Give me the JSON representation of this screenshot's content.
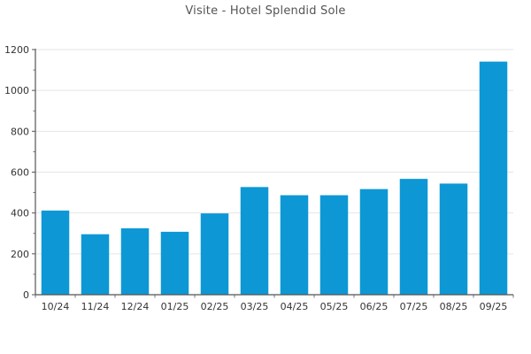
{
  "title": "Visite - Hotel Splendid Sole",
  "colors": {
    "bar": "#0d98d5",
    "grid": "#e5e5e5",
    "axis": "#555555",
    "tick_label": "#333333",
    "title_text": "#555555",
    "background": "#ffffff"
  },
  "chart_data": {
    "type": "bar",
    "title": "Visite - Hotel Splendid Sole",
    "categories": [
      "10/24",
      "11/24",
      "12/24",
      "01/25",
      "02/25",
      "03/25",
      "04/25",
      "05/25",
      "06/25",
      "07/25",
      "08/25",
      "09/25"
    ],
    "values": [
      412,
      296,
      325,
      308,
      398,
      527,
      487,
      487,
      517,
      567,
      544,
      1141
    ],
    "xlabel": "",
    "ylabel": "",
    "ylim": [
      0,
      1200
    ],
    "yticks": [
      0,
      200,
      400,
      600,
      800,
      1000,
      1200
    ],
    "ytick_step": 200,
    "y_minor_step": 100,
    "grid": "horizontal-major",
    "legend": "none",
    "bar_fill_fraction": 0.7
  }
}
